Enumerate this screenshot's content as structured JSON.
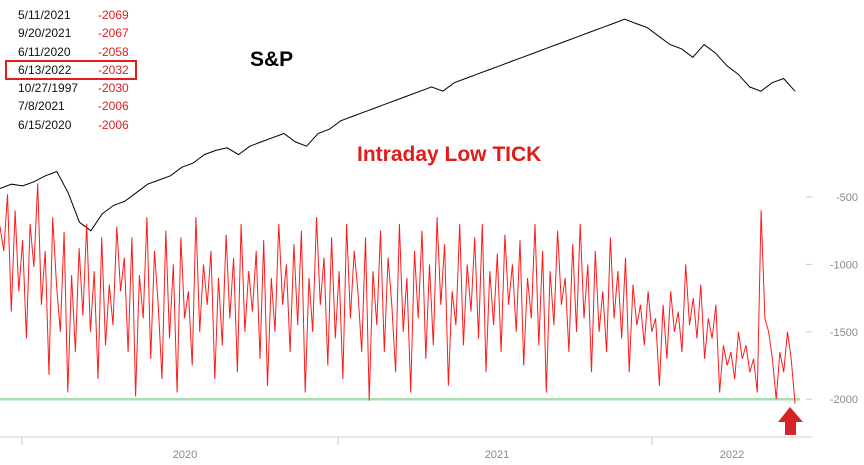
{
  "chart_data": {
    "type": "line",
    "ylim": [
      -2080,
      -300
    ],
    "yticks": [
      -500,
      -1000,
      -1500,
      -2000
    ],
    "xticks": [
      "2020",
      "2021",
      "2022"
    ],
    "reference_line": -2000,
    "annotations": {
      "sp_label": "S&P",
      "tick_label": "Intraday Low TICK"
    },
    "table": [
      {
        "date": "5/11/2021",
        "value": "-2069",
        "highlight": false
      },
      {
        "date": "9/20/2021",
        "value": "-2067",
        "highlight": false
      },
      {
        "date": "6/11/2020",
        "value": "-2058",
        "highlight": false
      },
      {
        "date": "6/13/2022",
        "value": "-2032",
        "highlight": true
      },
      {
        "date": "10/27/1997",
        "value": "-2030",
        "highlight": false
      },
      {
        "date": "7/8/2021",
        "value": "-2006",
        "highlight": false
      },
      {
        "date": "6/15/2020",
        "value": "-2006",
        "highlight": false
      }
    ],
    "series": [
      {
        "values": [
          -720,
          -900,
          -480,
          -1350,
          -600,
          -1200,
          -820,
          -1550,
          -700,
          -1020,
          -400,
          -1300,
          -900,
          -1820,
          -650,
          -1150,
          -1500,
          -760,
          -1950,
          -1080,
          -1650,
          -880,
          -1380,
          -700,
          -1500,
          -1050,
          -1850,
          -800,
          -1600,
          -1150,
          -1450,
          -720,
          -1200,
          -950,
          -1650,
          -800,
          -1980,
          -1080,
          -1400,
          -650,
          -1700,
          -900,
          -1300,
          -1850,
          -750,
          -1550,
          -1000,
          -1950,
          -800,
          -1400,
          -1200,
          -1750,
          -650,
          -1500,
          -1000,
          -1300,
          -900,
          -1850,
          -1100,
          -1600,
          -780,
          -1400,
          -950,
          -1800,
          -700,
          -1500,
          -1050,
          -1350,
          -900,
          -1700,
          -820,
          -1900,
          -1100,
          -1500,
          -700,
          -1300,
          -1000,
          -1650,
          -850,
          -1450,
          -750,
          -1950,
          -1100,
          -1500,
          -650,
          -1300,
          -950,
          -1750,
          -800,
          -1550,
          -1050,
          -1850,
          -700,
          -1400,
          -900,
          -1200,
          -1650,
          -800,
          -2010,
          -1050,
          -1450,
          -750,
          -1650,
          -950,
          -1300,
          -1800,
          -700,
          -1500,
          -1100,
          -1950,
          -900,
          -1400,
          -750,
          -1700,
          -1000,
          -1600,
          -650,
          -1300,
          -850,
          -1900,
          -1200,
          -1450,
          -700,
          -1600,
          -1000,
          -1350,
          -800,
          -1550,
          -700,
          -1800,
          -1050,
          -1450,
          -920,
          -1650,
          -780,
          -1300,
          -1000,
          -1500,
          -820,
          -1750,
          -1100,
          -1400,
          -700,
          -1600,
          -900,
          -1950,
          -1050,
          -1450,
          -750,
          -1300,
          -1100,
          -1650,
          -850,
          -1500,
          -700,
          -1400,
          -1000,
          -1800,
          -900,
          -1500,
          -1200,
          -1650,
          -800,
          -1400,
          -1050,
          -1550,
          -950,
          -1800,
          -1150,
          -1450,
          -1300,
          -1600,
          -1200,
          -1500,
          -1400,
          -1900,
          -1300,
          -1700,
          -1200,
          -1500,
          -1350,
          -1650,
          -1000,
          -1450,
          -1250,
          -1550,
          -1150,
          -1700,
          -1400,
          -1550,
          -1300,
          -1950,
          -1600,
          -1750,
          -1650,
          -1850,
          -1500,
          -1700,
          -1600,
          -1800,
          -1700,
          -1950,
          -600,
          -1400,
          -1500,
          -1700,
          -2000,
          -1650,
          -1800,
          -1500,
          -1700,
          -2032
        ]
      }
    ],
    "sp_series": [
      2750,
      2800,
      2780,
      2830,
      2900,
      2950,
      2700,
      2350,
      2250,
      2450,
      2550,
      2600,
      2700,
      2800,
      2850,
      2900,
      3000,
      3050,
      3150,
      3200,
      3230,
      3150,
      3250,
      3300,
      3350,
      3400,
      3300,
      3250,
      3400,
      3450,
      3550,
      3600,
      3650,
      3700,
      3750,
      3800,
      3850,
      3900,
      3950,
      3900,
      4000,
      4050,
      4100,
      4150,
      4200,
      4250,
      4300,
      4350,
      4400,
      4450,
      4500,
      4550,
      4600,
      4650,
      4700,
      4750,
      4700,
      4650,
      4550,
      4450,
      4400,
      4300,
      4450,
      4350,
      4200,
      4100,
      3950,
      3900,
      4000,
      4050,
      3900
    ]
  }
}
